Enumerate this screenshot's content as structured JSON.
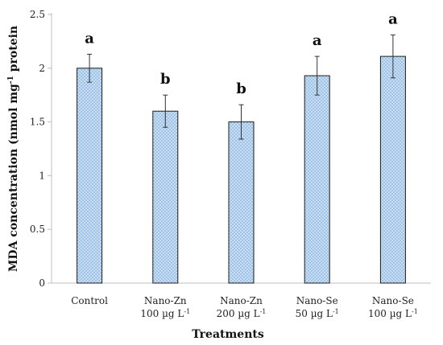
{
  "chart_data": {
    "type": "bar",
    "categories": [
      {
        "line1": "Control",
        "line2": ""
      },
      {
        "line1": "Nano-Zn",
        "line2": "100 µg L",
        "sup": "-1"
      },
      {
        "line1": "Nano-Zn",
        "line2": "200 µg L",
        "sup": "-1"
      },
      {
        "line1": "Nano-Se",
        "line2": "50 µg L",
        "sup": "-1"
      },
      {
        "line1": "Nano-Se",
        "line2": "100 µg L",
        "sup": "-1"
      }
    ],
    "values": [
      2.0,
      1.6,
      1.5,
      1.93,
      2.11
    ],
    "error": [
      0.13,
      0.15,
      0.16,
      0.18,
      0.2
    ],
    "significance": [
      "a",
      "b",
      "b",
      "a",
      "a"
    ],
    "xlabel": "Treatments",
    "ylabel": {
      "main": "MDA concentration (nmol mg",
      "sup": "-1",
      "tail": " protein"
    },
    "ylim": [
      0,
      2.5
    ],
    "yticks": [
      0,
      0.5,
      1,
      1.5,
      2,
      2.5
    ],
    "ytick_labels": [
      "0",
      "0.5",
      "1",
      "1.5",
      "2",
      "2.5"
    ],
    "grid": false,
    "bar_fill": "#9ec3e6",
    "bar_dots": "#ffffff",
    "bar_edge": "#1a1a1a",
    "axis_color": "#bfbfbf"
  }
}
